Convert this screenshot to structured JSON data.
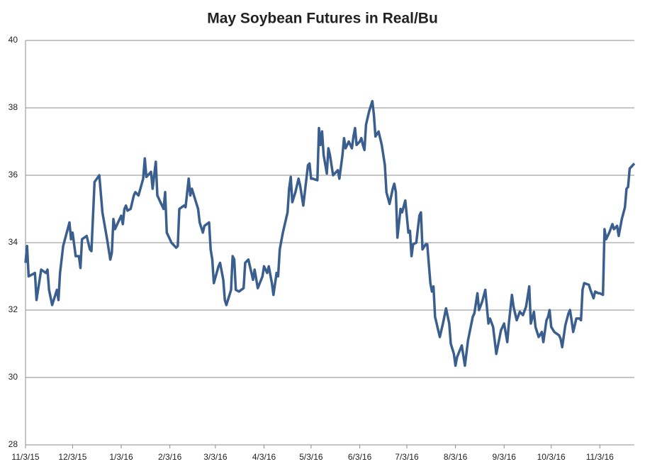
{
  "chart_data": {
    "type": "line",
    "title": "May Soybean Futures in Real/Bu",
    "color": "#3a5f8f",
    "x": [
      "2015-11-03",
      "2015-11-04",
      "2015-11-05",
      "2015-11-09",
      "2015-11-10",
      "2015-11-13",
      "2015-11-16",
      "2015-11-17",
      "2015-11-18",
      "2015-11-20",
      "2015-11-23",
      "2015-11-24",
      "2015-11-25",
      "2015-11-27",
      "2015-12-01",
      "2015-12-02",
      "2015-12-03",
      "2015-12-05",
      "2015-12-07",
      "2015-12-08",
      "2015-12-09",
      "2015-12-12",
      "2015-12-14",
      "2015-12-15",
      "2015-12-17",
      "2015-12-20",
      "2015-12-22",
      "2015-12-25",
      "2015-12-27",
      "2015-12-28",
      "2015-12-29",
      "2015-12-30",
      "2016-01-03",
      "2016-01-04",
      "2016-01-05",
      "2016-01-06",
      "2016-01-07",
      "2016-01-09",
      "2016-01-11",
      "2016-01-12",
      "2016-01-14",
      "2016-01-17",
      "2016-01-18",
      "2016-01-19",
      "2016-01-22",
      "2016-01-23",
      "2016-01-25",
      "2016-01-26",
      "2016-01-28",
      "2016-01-30",
      "2016-01-31",
      "2016-02-01",
      "2016-02-04",
      "2016-02-07",
      "2016-02-08",
      "2016-02-09",
      "2016-02-12",
      "2016-02-13",
      "2016-02-15",
      "2016-02-16",
      "2016-02-17",
      "2016-02-21",
      "2016-02-22",
      "2016-02-24",
      "2016-02-25",
      "2016-02-28",
      "2016-02-29",
      "2016-03-01",
      "2016-03-02",
      "2016-03-05",
      "2016-03-06",
      "2016-03-08",
      "2016-03-09",
      "2016-03-10",
      "2016-03-13",
      "2016-03-14",
      "2016-03-15",
      "2016-03-16",
      "2016-03-18",
      "2016-03-21",
      "2016-03-22",
      "2016-03-24",
      "2016-03-26",
      "2016-03-27",
      "2016-03-28",
      "2016-03-30",
      "2016-04-02",
      "2016-04-03",
      "2016-04-05",
      "2016-04-06",
      "2016-04-08",
      "2016-04-09",
      "2016-04-11",
      "2016-04-12",
      "2016-04-13",
      "2016-04-15",
      "2016-04-18",
      "2016-04-19",
      "2016-04-20",
      "2016-04-21",
      "2016-04-23",
      "2016-04-25",
      "2016-04-26",
      "2016-04-28",
      "2016-04-29",
      "2016-05-01",
      "2016-05-02",
      "2016-05-03",
      "2016-05-04",
      "2016-05-07",
      "2016-05-08",
      "2016-05-09",
      "2016-05-10",
      "2016-05-11",
      "2016-05-13",
      "2016-05-14",
      "2016-05-15",
      "2016-05-17",
      "2016-05-19",
      "2016-05-20",
      "2016-05-21",
      "2016-05-23",
      "2016-05-24",
      "2016-05-25",
      "2016-05-27",
      "2016-05-29",
      "2016-05-30",
      "2016-05-31",
      "2016-06-01",
      "2016-06-03",
      "2016-06-04",
      "2016-06-05",
      "2016-06-06",
      "2016-06-07",
      "2016-06-09",
      "2016-06-11",
      "2016-06-12",
      "2016-06-13",
      "2016-06-15",
      "2016-06-17",
      "2016-06-19",
      "2016-06-20",
      "2016-06-22",
      "2016-06-24",
      "2016-06-25",
      "2016-06-26",
      "2016-06-27",
      "2016-06-29",
      "2016-06-30",
      "2016-07-02",
      "2016-07-04",
      "2016-07-05",
      "2016-07-06",
      "2016-07-07",
      "2016-07-09",
      "2016-07-11",
      "2016-07-12",
      "2016-07-13",
      "2016-07-15",
      "2016-07-16",
      "2016-07-18",
      "2016-07-19",
      "2016-07-20",
      "2016-07-21",
      "2016-07-24",
      "2016-07-26",
      "2016-07-28",
      "2016-07-30",
      "2016-07-31",
      "2016-08-02",
      "2016-08-03",
      "2016-08-04",
      "2016-08-07",
      "2016-08-09",
      "2016-08-11",
      "2016-08-14",
      "2016-08-15",
      "2016-08-17",
      "2016-08-18",
      "2016-08-20",
      "2016-08-22",
      "2016-08-24",
      "2016-08-25",
      "2016-08-27",
      "2016-08-29",
      "2016-09-01",
      "2016-09-03",
      "2016-09-05",
      "2016-09-06",
      "2016-09-08",
      "2016-09-09",
      "2016-09-11",
      "2016-09-13",
      "2016-09-15",
      "2016-09-17",
      "2016-09-19",
      "2016-09-20",
      "2016-09-22",
      "2016-09-23",
      "2016-09-25",
      "2016-09-27",
      "2016-09-28",
      "2016-09-30",
      "2016-10-01",
      "2016-10-02",
      "2016-10-03",
      "2016-10-05",
      "2016-10-08",
      "2016-10-09",
      "2016-10-10",
      "2016-10-12",
      "2016-10-14",
      "2016-10-15",
      "2016-10-16",
      "2016-10-17",
      "2016-10-19",
      "2016-10-21",
      "2016-10-22",
      "2016-10-23",
      "2016-10-24",
      "2016-10-27",
      "2016-10-28",
      "2016-10-30",
      "2016-10-31",
      "2016-11-02",
      "2016-11-03",
      "2016-11-05",
      "2016-11-06",
      "2016-11-07",
      "2016-11-09",
      "2016-11-11",
      "2016-11-12",
      "2016-11-14",
      "2016-11-15",
      "2016-11-17",
      "2016-11-19",
      "2016-11-20",
      "2016-11-21",
      "2016-11-22",
      "2016-11-25"
    ],
    "values": [
      33.4,
      33.9,
      33.0,
      33.1,
      32.3,
      33.2,
      33.1,
      33.2,
      32.6,
      32.15,
      32.6,
      32.3,
      33.1,
      33.9,
      34.6,
      34.1,
      34.3,
      33.6,
      33.6,
      33.25,
      34.1,
      34.2,
      33.8,
      33.75,
      35.8,
      36.0,
      34.9,
      34.1,
      33.5,
      33.7,
      34.7,
      34.4,
      34.8,
      34.55,
      35.0,
      35.1,
      34.95,
      35.0,
      35.4,
      35.5,
      35.4,
      35.9,
      36.5,
      35.95,
      36.1,
      35.6,
      36.4,
      35.4,
      35.2,
      35.0,
      35.5,
      34.3,
      34.0,
      33.85,
      33.9,
      35.0,
      35.1,
      35.05,
      35.9,
      35.4,
      35.6,
      35.0,
      34.6,
      34.3,
      34.5,
      34.6,
      33.8,
      33.5,
      32.8,
      33.3,
      33.4,
      32.9,
      32.3,
      32.15,
      32.6,
      33.6,
      33.5,
      32.6,
      32.55,
      32.65,
      33.4,
      33.5,
      33.1,
      32.9,
      33.2,
      32.65,
      33.0,
      33.3,
      33.1,
      33.3,
      32.8,
      32.45,
      33.1,
      33.0,
      33.8,
      34.3,
      34.9,
      35.6,
      35.95,
      35.2,
      35.5,
      35.9,
      35.7,
      35.1,
      35.5,
      36.3,
      36.35,
      35.9,
      35.9,
      35.85,
      37.4,
      36.9,
      37.3,
      36.6,
      36.05,
      36.8,
      36.6,
      36.0,
      36.1,
      36.15,
      35.9,
      36.6,
      37.1,
      36.8,
      37.0,
      36.8,
      37.15,
      37.4,
      36.9,
      37.0,
      37.1,
      36.9,
      36.75,
      37.5,
      37.9,
      38.2,
      37.8,
      37.15,
      37.3,
      36.9,
      36.3,
      35.5,
      35.15,
      35.6,
      35.75,
      35.5,
      34.15,
      35.0,
      34.9,
      35.25,
      34.3,
      34.35,
      33.6,
      33.95,
      34.0,
      34.8,
      34.9,
      33.8,
      33.95,
      33.95,
      32.8,
      32.55,
      32.7,
      31.8,
      31.2,
      31.6,
      32.05,
      31.6,
      31.0,
      30.7,
      30.35,
      30.6,
      30.95,
      30.35,
      31.1,
      31.8,
      31.9,
      32.5,
      32.0,
      32.25,
      32.6,
      31.6,
      31.75,
      31.5,
      30.7,
      31.4,
      31.6,
      31.05,
      31.6,
      32.45,
      32.1,
      31.7,
      31.95,
      31.85,
      32.1,
      32.7,
      31.6,
      31.95,
      31.5,
      31.2,
      31.35,
      31.05,
      31.7,
      31.8,
      32.0,
      31.5,
      31.35,
      31.25,
      31.15,
      30.9,
      31.55,
      31.9,
      32.0,
      31.7,
      31.35,
      31.75,
      31.75,
      31.7,
      32.6,
      32.8,
      32.75,
      32.6,
      32.35,
      32.55,
      32.5,
      32.5,
      32.45,
      34.4,
      34.1,
      34.3,
      34.55,
      34.4,
      34.5,
      34.2,
      34.7,
      35.05,
      35.6,
      35.65,
      36.2,
      36.35
    ],
    "xlim": [
      "2015-11-03",
      "2016-11-25"
    ],
    "xticks": [
      {
        "value": "2015-11-03",
        "label": "11/3/15"
      },
      {
        "value": "2015-12-03",
        "label": "12/3/15"
      },
      {
        "value": "2016-01-03",
        "label": "1/3/16"
      },
      {
        "value": "2016-02-03",
        "label": "2/3/16"
      },
      {
        "value": "2016-03-03",
        "label": "3/3/16"
      },
      {
        "value": "2016-04-03",
        "label": "4/3/16"
      },
      {
        "value": "2016-05-03",
        "label": "5/3/16"
      },
      {
        "value": "2016-06-03",
        "label": "6/3/16"
      },
      {
        "value": "2016-07-03",
        "label": "7/3/16"
      },
      {
        "value": "2016-08-03",
        "label": "8/3/16"
      },
      {
        "value": "2016-09-03",
        "label": "9/3/16"
      },
      {
        "value": "2016-10-03",
        "label": "10/3/16"
      },
      {
        "value": "2016-11-03",
        "label": "11/3/16"
      }
    ],
    "ylim": [
      28,
      40
    ],
    "yticks": [
      28,
      30,
      32,
      34,
      36,
      38,
      40
    ],
    "grid": true
  }
}
